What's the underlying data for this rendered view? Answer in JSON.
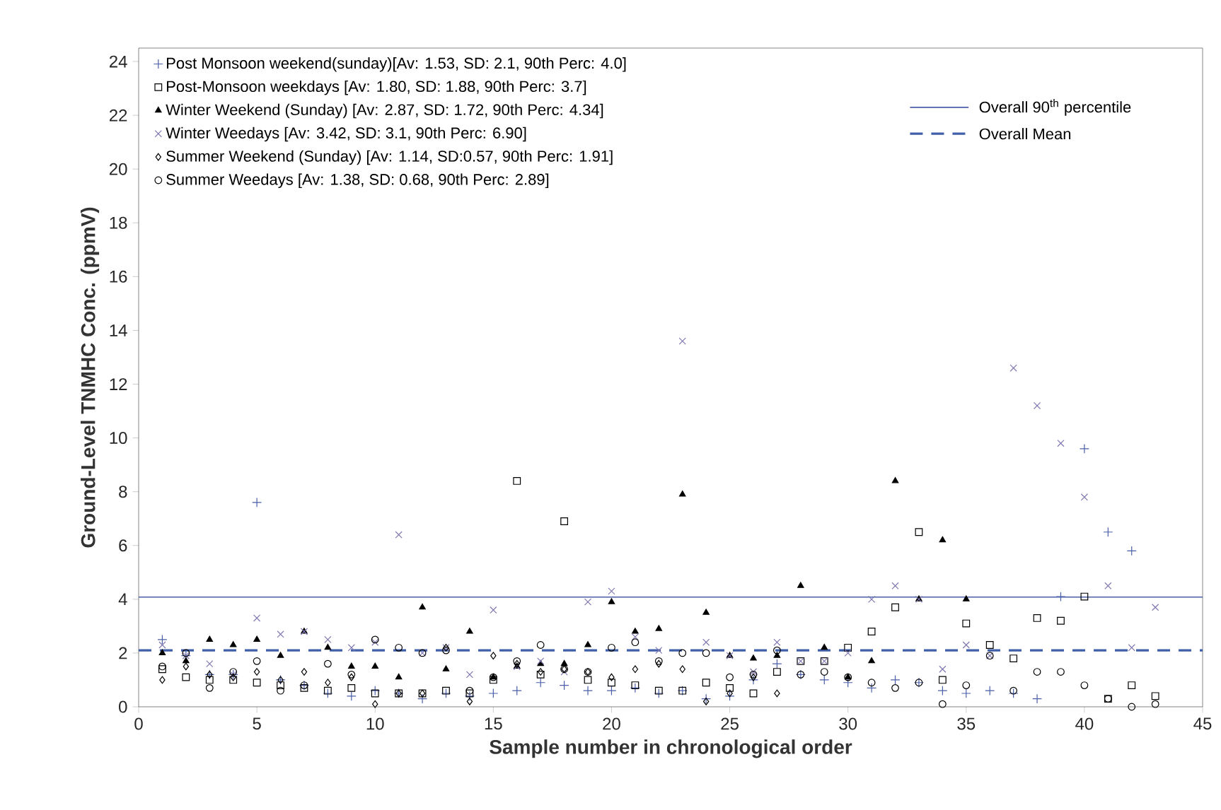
{
  "chart_data": {
    "type": "scatter",
    "xlabel": "Sample number in chronological order",
    "ylabel": "Ground-Level TNMHC Conc. (ppmV)",
    "x": [
      1,
      2,
      3,
      4,
      5,
      6,
      7,
      8,
      9,
      10,
      11,
      12,
      13,
      14,
      15,
      16,
      17,
      18,
      19,
      20,
      21,
      22,
      23,
      24,
      25,
      26,
      27,
      28,
      29,
      30,
      31,
      32,
      33,
      34,
      35,
      36,
      37,
      38,
      39,
      40,
      41,
      42,
      43
    ],
    "series": [
      {
        "name": "Post Monsoon weekend(sunday)[Av: 1.53, SD: 2.1, 90th Perc: 4.0]",
        "color": "#4a5fa8",
        "marker": "plus",
        "values": [
          2.5,
          1.9,
          1.2,
          1.2,
          7.6,
          1.0,
          0.8,
          0.5,
          0.4,
          0.6,
          0.5,
          0.3,
          0.5,
          0.4,
          0.5,
          0.6,
          0.9,
          0.8,
          0.6,
          0.6,
          0.7,
          0.5,
          0.6,
          0.3,
          0.4,
          1.0,
          1.6,
          1.2,
          1.0,
          0.9,
          0.7,
          1.0,
          0.9,
          0.6,
          0.5,
          0.6,
          0.5,
          0.3,
          4.1,
          9.6,
          6.5,
          5.8,
          null
        ]
      },
      {
        "name": "Post-Monsoon weekdays [Av: 1.80, SD: 1.88, 90th Perc: 3.7]",
        "color": "#000000",
        "marker": "square",
        "values": [
          1.4,
          1.1,
          1.0,
          1.0,
          0.9,
          0.8,
          0.7,
          0.6,
          0.7,
          0.5,
          0.5,
          0.5,
          0.6,
          0.5,
          1.0,
          8.4,
          1.2,
          6.9,
          1.0,
          0.9,
          0.8,
          0.6,
          0.6,
          0.9,
          0.7,
          0.5,
          1.3,
          1.7,
          1.7,
          2.2,
          2.8,
          3.7,
          6.5,
          1.0,
          3.1,
          2.3,
          1.8,
          3.3,
          3.2,
          4.1,
          0.3,
          0.8,
          0.4
        ]
      },
      {
        "name": "Winter Weekend (Sunday) [Av: 2.87, SD: 1.72, 90th Perc: 4.34]",
        "color": "#000000",
        "marker": "triangle",
        "values": [
          2.0,
          1.7,
          2.5,
          2.3,
          2.5,
          1.9,
          2.8,
          2.2,
          1.5,
          1.5,
          1.1,
          3.7,
          1.4,
          2.8,
          1.1,
          1.5,
          1.6,
          1.6,
          2.3,
          3.9,
          2.8,
          2.9,
          7.9,
          3.5,
          1.9,
          1.8,
          1.9,
          4.5,
          2.2,
          1.1,
          1.7,
          8.4,
          4.0,
          6.2,
          4.0,
          null,
          null,
          null,
          null,
          null,
          null,
          null,
          null
        ]
      },
      {
        "name": "Winter Weedays [Av: 3.42, SD: 3.1, 90th Perc: 6.90]",
        "color": "#8078b0",
        "marker": "cross",
        "values": [
          2.3,
          1.9,
          1.6,
          1.2,
          3.3,
          2.7,
          2.8,
          2.5,
          2.2,
          2.4,
          6.4,
          2.0,
          2.2,
          1.2,
          3.6,
          1.5,
          1.7,
          1.3,
          3.9,
          4.3,
          2.6,
          2.1,
          13.6,
          2.4,
          1.9,
          1.3,
          2.4,
          1.7,
          1.7,
          2.0,
          4.0,
          4.5,
          4.0,
          1.4,
          2.3,
          1.9,
          12.6,
          11.2,
          9.8,
          7.8,
          4.5,
          2.2,
          3.7
        ]
      },
      {
        "name": "Summer Weekend (Sunday) [Av: 1.14, SD:0.57, 90th Perc: 1.91]",
        "color": "#000000",
        "marker": "diamond",
        "values": [
          1.0,
          1.5,
          1.2,
          1.1,
          1.3,
          1.0,
          1.3,
          0.9,
          1.1,
          0.1,
          0.5,
          0.5,
          2.2,
          0.2,
          1.9,
          1.6,
          1.3,
          1.4,
          1.3,
          1.1,
          1.4,
          1.6,
          1.4,
          0.2,
          0.5,
          1.1,
          0.5,
          null,
          null,
          null,
          null,
          null,
          null,
          null,
          null,
          null,
          null,
          null,
          null,
          null,
          null,
          null,
          null
        ]
      },
      {
        "name": "Summer Weedays [Av: 1.38, SD: 0.68, 90th Perc: 2.89]",
        "color": "#000000",
        "marker": "circle",
        "values": [
          1.5,
          2.0,
          0.7,
          1.3,
          1.7,
          0.6,
          0.8,
          1.6,
          1.2,
          2.5,
          2.2,
          2.0,
          2.1,
          0.6,
          1.1,
          1.7,
          2.3,
          1.4,
          1.3,
          2.2,
          2.4,
          1.7,
          2.0,
          2.0,
          1.1,
          1.2,
          2.1,
          1.2,
          1.3,
          1.1,
          0.9,
          0.7,
          0.9,
          0.1,
          0.8,
          1.9,
          0.6,
          1.3,
          1.3,
          0.8,
          0.3,
          0.0,
          0.1
        ]
      }
    ],
    "ref_lines": [
      {
        "axis": "y",
        "value": 4.08,
        "label": "Overall 90$^{th}$ percentile",
        "color": "#4a5fa8",
        "line_style": "solid"
      },
      {
        "axis": "y",
        "value": 2.1,
        "label": "Overall Mean",
        "color": "#3f5fa8",
        "line_style": "dashed"
      }
    ],
    "xlim": [
      0,
      45
    ],
    "ylim": [
      0,
      24.5
    ],
    "xticks": [
      0,
      5,
      10,
      15,
      20,
      25,
      30,
      35,
      40,
      45
    ],
    "yticks": [
      0,
      2,
      4,
      6,
      8,
      10,
      12,
      14,
      16,
      18,
      20,
      22,
      24
    ],
    "grid": false,
    "legend": "top left"
  }
}
